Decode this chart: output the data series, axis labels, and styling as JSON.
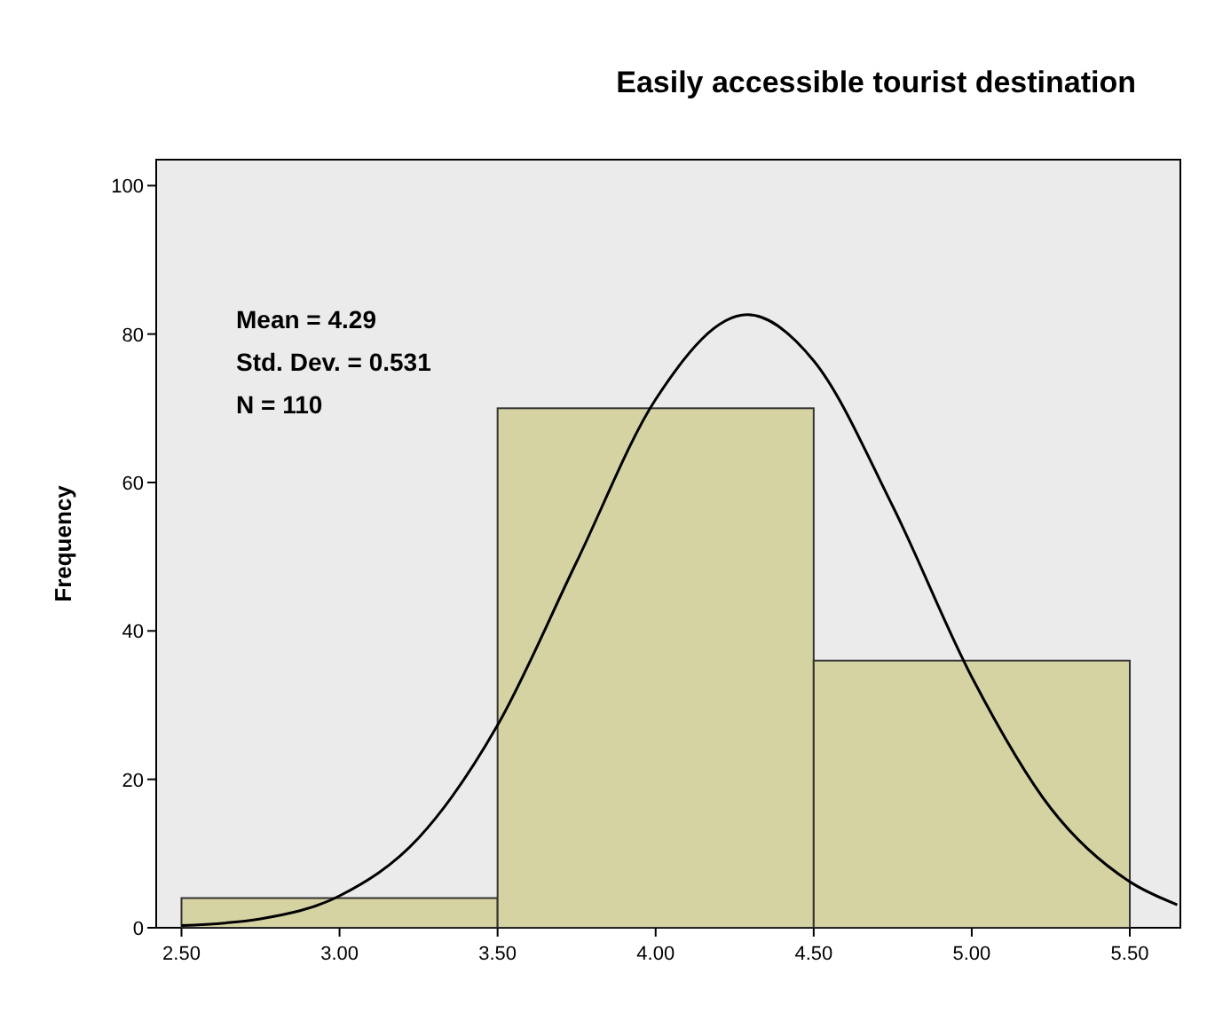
{
  "chart_data": {
    "type": "histogram",
    "title": "Easily accessible tourist destination",
    "ylabel": "Frequency",
    "annotations": [
      "Mean = 4.29",
      "Std. Dev. = 0.531",
      "N = 110"
    ],
    "bins": [
      2.5,
      3.5,
      4.5,
      5.5
    ],
    "series": [
      {
        "color": "#d6d3a3",
        "values": [
          4,
          70,
          36
        ]
      },
      {
        "type": "line",
        "color": "#000000",
        "x": [
          2.5,
          2.75,
          3.0,
          3.25,
          3.5,
          3.75,
          4.0,
          4.29,
          4.5,
          4.75,
          5.0,
          5.25,
          5.5,
          5.65
        ],
        "values": [
          0.3,
          1.2,
          4.3,
          12.1,
          27.3,
          49.3,
          71.2,
          82.6,
          76.4,
          56.8,
          33.8,
          16.1,
          6.2,
          3.1
        ]
      }
    ],
    "xlim": [
      2.42,
      5.66
    ],
    "xticks": [
      {
        "value": 2.5,
        "label": "2.50"
      },
      {
        "value": 3,
        "label": "3.00"
      },
      {
        "value": 3.5,
        "label": "3.50"
      },
      {
        "value": 4,
        "label": "4.00"
      },
      {
        "value": 4.5,
        "label": "4.50"
      },
      {
        "value": 5,
        "label": "5.00"
      },
      {
        "value": 5.5,
        "label": "5.50"
      }
    ],
    "ylim": [
      0,
      103.5
    ],
    "yticks": [
      0,
      20,
      40,
      60,
      80,
      100
    ]
  }
}
